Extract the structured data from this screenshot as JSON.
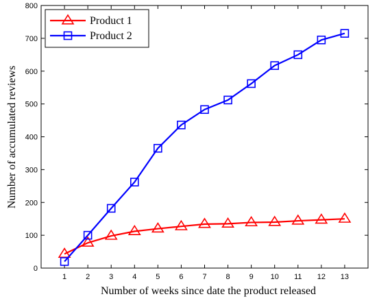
{
  "chart_data": {
    "type": "line",
    "title": "",
    "xlabel": "Number of weeks since date the product released",
    "ylabel": "Number of accumulated reviews",
    "x": [
      1,
      2,
      3,
      4,
      5,
      6,
      7,
      8,
      9,
      10,
      11,
      12,
      13
    ],
    "xlim": [
      0,
      14
    ],
    "ylim": [
      0,
      800
    ],
    "xticks": [
      "1",
      "2",
      "3",
      "4",
      "5",
      "6",
      "7",
      "8",
      "9",
      "10",
      "11",
      "12",
      "13"
    ],
    "yticks": [
      "0",
      "100",
      "200",
      "300",
      "400",
      "500",
      "600",
      "700",
      "800"
    ],
    "grid": false,
    "legend_position": "top-left",
    "series": [
      {
        "name": "Product 1",
        "color": "#ff0000",
        "marker": "triangle",
        "values": [
          43,
          77,
          98,
          112,
          120,
          127,
          134,
          135,
          139,
          140,
          144,
          147,
          150
        ]
      },
      {
        "name": "Product 2",
        "color": "#0000ff",
        "marker": "square",
        "values": [
          20,
          100,
          182,
          262,
          365,
          436,
          483,
          512,
          562,
          617,
          650,
          695,
          715
        ]
      }
    ]
  }
}
